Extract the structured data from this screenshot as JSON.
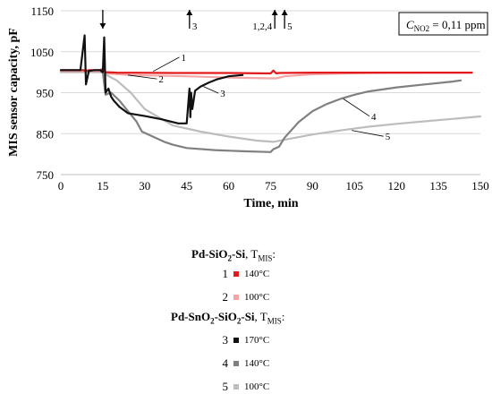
{
  "chart_data": {
    "type": "line",
    "title": "",
    "xlabel": "Time, min",
    "ylabel": "MIS sensor capacity, pF",
    "xlim": [
      0,
      150
    ],
    "ylim": [
      750,
      1150
    ],
    "x_ticks": [
      0,
      15,
      30,
      45,
      60,
      75,
      90,
      105,
      120,
      135,
      150
    ],
    "y_ticks": [
      750,
      850,
      950,
      1050,
      1150
    ],
    "grid": "horizontal",
    "concentration_label": "C",
    "concentration_sub": "NO2",
    "concentration_value": " = 0,11 ppm",
    "series": [
      {
        "name": "1",
        "color": "#e31a1c",
        "x": [
          0,
          8,
          9,
          10,
          14,
          15,
          16,
          20,
          40,
          60,
          75,
          76,
          77,
          78,
          90,
          110,
          130,
          147
        ],
        "y": [
          1005,
          1005,
          1003,
          1005,
          1005,
          1008,
          1000,
          999,
          998,
          998,
          997,
          1004,
          997,
          998,
          999,
          999,
          999,
          999
        ]
      },
      {
        "name": "2",
        "color": "#f4a6a6",
        "x": [
          0,
          14,
          15,
          16,
          25,
          45,
          60,
          75,
          77,
          80,
          90,
          110,
          130,
          147
        ],
        "y": [
          1003,
          1003,
          1004,
          997,
          993,
          990,
          987,
          985,
          985,
          990,
          995,
          998,
          999,
          999
        ]
      },
      {
        "name": "3",
        "color": "#111111",
        "x": [
          0,
          7,
          8.5,
          9,
          10,
          12,
          14,
          15,
          15.5,
          16,
          17,
          18,
          19,
          21,
          24,
          30,
          36,
          42,
          45,
          46,
          46.3,
          46.6,
          47,
          48,
          50,
          53,
          56,
          60,
          63,
          65
        ],
        "y": [
          1005,
          1005,
          1090,
          970,
          1003,
          1005,
          1005,
          1000,
          1085,
          950,
          960,
          940,
          930,
          915,
          900,
          893,
          885,
          875,
          875,
          960,
          890,
          950,
          910,
          955,
          965,
          975,
          983,
          990,
          992,
          993
        ]
      },
      {
        "name": "4",
        "color": "#808080",
        "x": [
          0,
          14,
          15,
          16,
          18,
          21,
          24,
          27,
          29,
          37,
          40,
          45,
          55,
          65,
          75,
          76,
          78,
          80,
          85,
          90,
          95,
          100,
          105,
          110,
          120,
          130,
          140,
          143
        ],
        "y": [
          1003,
          1003,
          1000,
          945,
          950,
          930,
          905,
          880,
          855,
          830,
          823,
          815,
          810,
          807,
          805,
          812,
          818,
          840,
          878,
          905,
          922,
          935,
          945,
          953,
          963,
          970,
          977,
          980
        ]
      },
      {
        "name": "5",
        "color": "#bdbdbd",
        "x": [
          0,
          14,
          15,
          20,
          25,
          30,
          40,
          50,
          60,
          70,
          76,
          80,
          90,
          100,
          110,
          120,
          130,
          140,
          150
        ],
        "y": [
          1000,
          1000,
          998,
          980,
          950,
          910,
          870,
          855,
          843,
          833,
          830,
          835,
          848,
          858,
          867,
          874,
          880,
          886,
          892
        ]
      }
    ],
    "event_arrows": [
      {
        "x": 15,
        "direction": "down",
        "label": ""
      },
      {
        "x": 46,
        "direction": "up",
        "label": "3"
      },
      {
        "x": 76.5,
        "direction": "up",
        "label": "1,2,4"
      },
      {
        "x": 80,
        "direction": "up",
        "label": "5"
      }
    ],
    "curve_annotations": [
      {
        "text": "1",
        "x": 43,
        "y": 1030,
        "ax": 33,
        "ay": 1002
      },
      {
        "text": "2",
        "x": 35,
        "y": 977,
        "ax": 24,
        "ay": 993
      },
      {
        "text": "3",
        "x": 57,
        "y": 942,
        "ax": 51,
        "ay": 965
      },
      {
        "text": "4",
        "x": 111,
        "y": 886,
        "ax": 101,
        "ay": 935
      },
      {
        "text": "5",
        "x": 116,
        "y": 837,
        "ax": 104,
        "ay": 858
      }
    ]
  },
  "legend": {
    "group1_title_a": "Pd-SiO",
    "group1_title_sub": "2",
    "group1_title_b": "-Si",
    "group1_title_c": ", T",
    "group1_title_d": "MIS",
    "group1_title_e": ":",
    "group1": [
      {
        "num": "1",
        "color": "#e31a1c",
        "temp": "140°C"
      },
      {
        "num": "2",
        "color": "#f4a6a6",
        "temp": "100°C"
      }
    ],
    "group2_title_a": "Pd-SnO",
    "group2_title_sub1": "2",
    "group2_title_b": "-SiO",
    "group2_title_sub2": "2",
    "group2_title_c": "-Si",
    "group2_title_d": ", T",
    "group2_title_e": "MIS",
    "group2_title_f": ":",
    "group2": [
      {
        "num": "3",
        "color": "#111111",
        "temp": "170°C"
      },
      {
        "num": "4",
        "color": "#808080",
        "temp": "140°C"
      },
      {
        "num": "5",
        "color": "#bdbdbd",
        "temp": "100°C"
      }
    ]
  }
}
